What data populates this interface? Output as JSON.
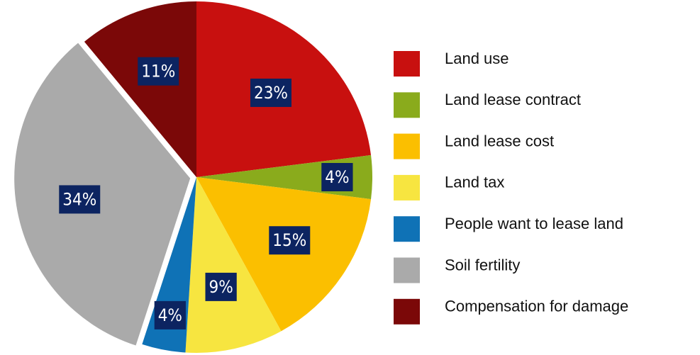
{
  "chart_data": {
    "type": "pie",
    "categories": [
      "Land use",
      "Land lease contract",
      "Land lease cost",
      "Land tax",
      "People want to lease land",
      "Soil fertility",
      "Compensation for damage"
    ],
    "values": [
      23,
      4,
      15,
      9,
      4,
      34,
      11
    ],
    "value_labels": [
      "23%",
      "4%",
      "15%",
      "9%",
      "4%",
      "34%",
      "11%"
    ],
    "colors": [
      "#c8100f",
      "#8aab1c",
      "#fbbf00",
      "#f7e540",
      "#0f72b6",
      "#aaaaaa",
      "#7b0808"
    ],
    "legend": "right"
  }
}
